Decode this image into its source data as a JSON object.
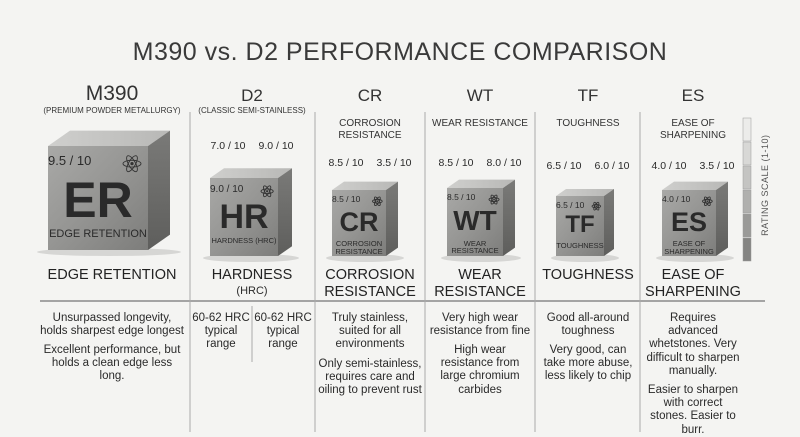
{
  "title": "M390 vs. D2 PERFORMANCE COMPARISON",
  "scale_label": "RATING SCALE (1-10)",
  "columns": [
    {
      "header": "M390",
      "subheader": "(PREMIUM POWDER METALLURGY)",
      "cube": {
        "score": "9.5 / 10",
        "symbol": "ER",
        "caption": "EDGE RETENTION"
      },
      "label": "EDGE RETENTION",
      "descriptions": [
        "Unsurpassed longevity, holds sharpest edge longest",
        "Excellent performance, but holds a clean edge less long."
      ]
    },
    {
      "header": "D2",
      "subheader": "(CLASSIC SEMI-STAINLESS)",
      "scores": [
        "7.0 / 10",
        "9.0 / 10"
      ],
      "cube": {
        "score": "9.0 / 10",
        "symbol": "HR",
        "caption": "HARDNESS (HRC)"
      },
      "label": "HARDNESS",
      "label_note": "(HRC)",
      "descriptions": [
        "60-62 HRC typical range",
        "60-62 HRC typical range"
      ]
    },
    {
      "header": "CR",
      "subheader": "CORROSION RESISTANCE",
      "scores": [
        "8.5 / 10",
        "3.5 / 10"
      ],
      "cube": {
        "score": "8.5 / 10",
        "symbol": "CR",
        "caption": "CORROSION RESISTANCE"
      },
      "label": "CORROSION RESISTANCE",
      "descriptions": [
        "Truly stainless, suited for all environments",
        "Only semi-stainless, requires care and oiling to prevent rust"
      ]
    },
    {
      "header": "WT",
      "subheader": "WEAR RESISTANCE",
      "scores": [
        "8.5 / 10",
        "8.0 / 10"
      ],
      "cube": {
        "score": "8.5 / 10",
        "symbol": "WT",
        "caption": "WEAR RESISTANCE"
      },
      "label": "WEAR RESISTANCE",
      "descriptions": [
        "Very high wear resistance from fine",
        "High wear resistance from large chromium carbides"
      ]
    },
    {
      "header": "TF",
      "subheader": "TOUGHNESS",
      "scores": [
        "6.5 / 10",
        "6.0 / 10"
      ],
      "cube": {
        "score": "6.5 / 10",
        "symbol": "TF",
        "caption": "TOUGHNESS"
      },
      "label": "TOUGHNESS",
      "descriptions": [
        "Good all-around toughness",
        "Very good, can take more abuse, less likely to chip"
      ]
    },
    {
      "header": "ES",
      "subheader": "EASE OF SHARPENING",
      "scores": [
        "4.0 / 10",
        "3.5 / 10"
      ],
      "cube": {
        "score": "4.0 / 10",
        "symbol": "ES",
        "caption": "EASE OF SHARPENING"
      },
      "label": "EASE OF SHARPENING",
      "descriptions": [
        "Requires advanced whetstones. Very difficult to sharpen manually.",
        "Easier to sharpen with correct stones. Easier to burr."
      ]
    }
  ]
}
